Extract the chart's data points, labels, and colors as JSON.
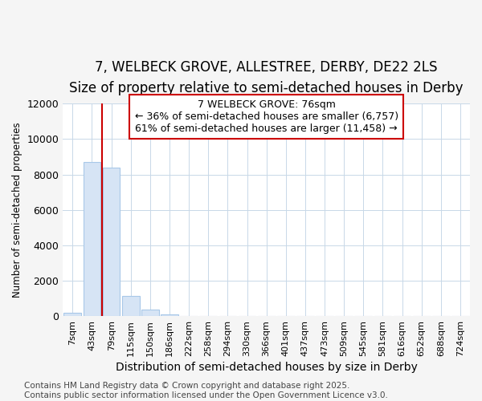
{
  "title": "7, WELBECK GROVE, ALLESTREE, DERBY, DE22 2LS",
  "subtitle": "Size of property relative to semi-detached houses in Derby",
  "xlabel": "Distribution of semi-detached houses by size in Derby",
  "ylabel": "Number of semi-detached properties",
  "categories": [
    "7sqm",
    "43sqm",
    "79sqm",
    "115sqm",
    "150sqm",
    "186sqm",
    "222sqm",
    "258sqm",
    "294sqm",
    "330sqm",
    "366sqm",
    "401sqm",
    "437sqm",
    "473sqm",
    "509sqm",
    "545sqm",
    "581sqm",
    "616sqm",
    "652sqm",
    "688sqm",
    "724sqm"
  ],
  "values": [
    200,
    8700,
    8400,
    1150,
    350,
    100,
    10,
    2,
    1,
    1,
    0,
    0,
    0,
    0,
    0,
    0,
    0,
    0,
    0,
    0,
    0
  ],
  "bar_color": "#d6e4f5",
  "bar_edge_color": "#a8c8e8",
  "vline_x": 1.5,
  "vline_color": "#cc0000",
  "annotation_text": "7 WELBECK GROVE: 76sqm\n← 36% of semi-detached houses are smaller (6,757)\n61% of semi-detached houses are larger (11,458) →",
  "annotation_box_color": "white",
  "annotation_box_edge_color": "#cc0000",
  "ylim": [
    0,
    12000
  ],
  "yticks": [
    0,
    2000,
    4000,
    6000,
    8000,
    10000,
    12000
  ],
  "footer_text": "Contains HM Land Registry data © Crown copyright and database right 2025.\nContains public sector information licensed under the Open Government Licence v3.0.",
  "bg_color": "#f5f5f5",
  "plot_bg_color": "white",
  "title_fontsize": 12,
  "subtitle_fontsize": 10,
  "footer_fontsize": 7.5,
  "annotation_fontsize": 9
}
